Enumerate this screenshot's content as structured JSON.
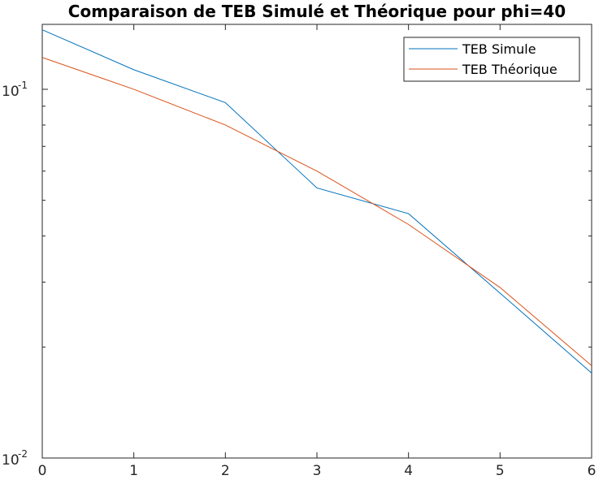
{
  "chart_data": {
    "type": "line",
    "title": "Comparaison de TEB Simulé et Théorique pour phi=40",
    "xlabel": "",
    "ylabel": "",
    "x": [
      0,
      1,
      2,
      3,
      4,
      5,
      6
    ],
    "xlim": [
      0,
      6
    ],
    "ylim": [
      0.01,
      0.15
    ],
    "yscale": "log",
    "x_ticks": [
      "0",
      "1",
      "2",
      "3",
      "4",
      "5",
      "6"
    ],
    "y_ticks": [
      {
        "value": 0.1,
        "base": "10",
        "exp": "-1"
      },
      {
        "value": 0.01,
        "base": "10",
        "exp": "-2"
      }
    ],
    "grid": false,
    "legend_position": "top-right",
    "series": [
      {
        "name": "TEB Simule",
        "color": "#0072BD",
        "values": [
          0.145,
          0.113,
          0.092,
          0.054,
          0.046,
          0.028,
          0.017
        ]
      },
      {
        "name": "TEB Théorique",
        "color": "#D95319",
        "values": [
          0.122,
          0.1,
          0.08,
          0.06,
          0.043,
          0.029,
          0.0178
        ]
      }
    ]
  }
}
